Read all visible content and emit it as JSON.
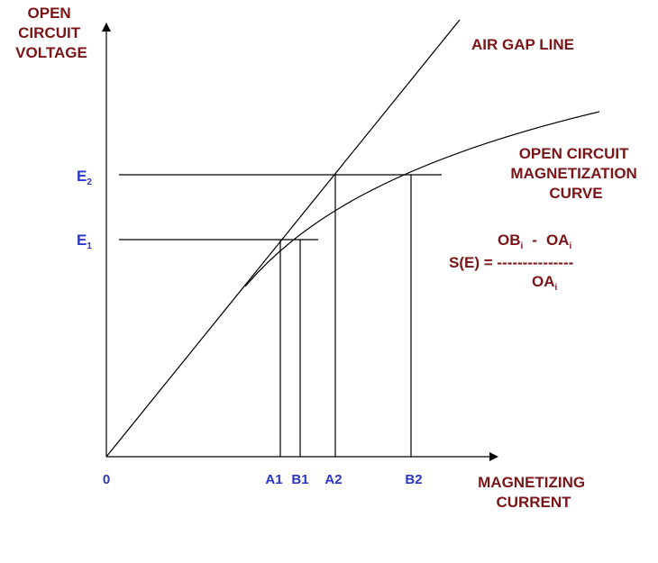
{
  "y_axis_label": [
    "OPEN",
    "CIRCUIT",
    "VOLTAGE"
  ],
  "x_axis_label": [
    "MAGNETIZING",
    "CURRENT"
  ],
  "air_gap_label": "AIR GAP LINE",
  "curve_label": [
    "OPEN CIRCUIT",
    "MAGNETIZATION",
    "CURVE"
  ],
  "origin_label": "0",
  "e2": {
    "main": "E",
    "sub": "2"
  },
  "e1": {
    "main": "E",
    "sub": "1"
  },
  "x_ticks": {
    "a1": "A1",
    "b1": "B1",
    "a2": "A2",
    "b2": "B2"
  },
  "formula": {
    "numerator": {
      "ob": "OB",
      "ob_sub": "i",
      "minus": "-",
      "oa": "OA",
      "oa_sub": "i"
    },
    "lhs": "S(E) = ",
    "dashes": "---------------",
    "denominator": {
      "oa": "OA",
      "oa_sub": "i"
    }
  },
  "colors": {
    "label": "#7b1416",
    "tick": "#2a36c8",
    "line": "#000000"
  }
}
